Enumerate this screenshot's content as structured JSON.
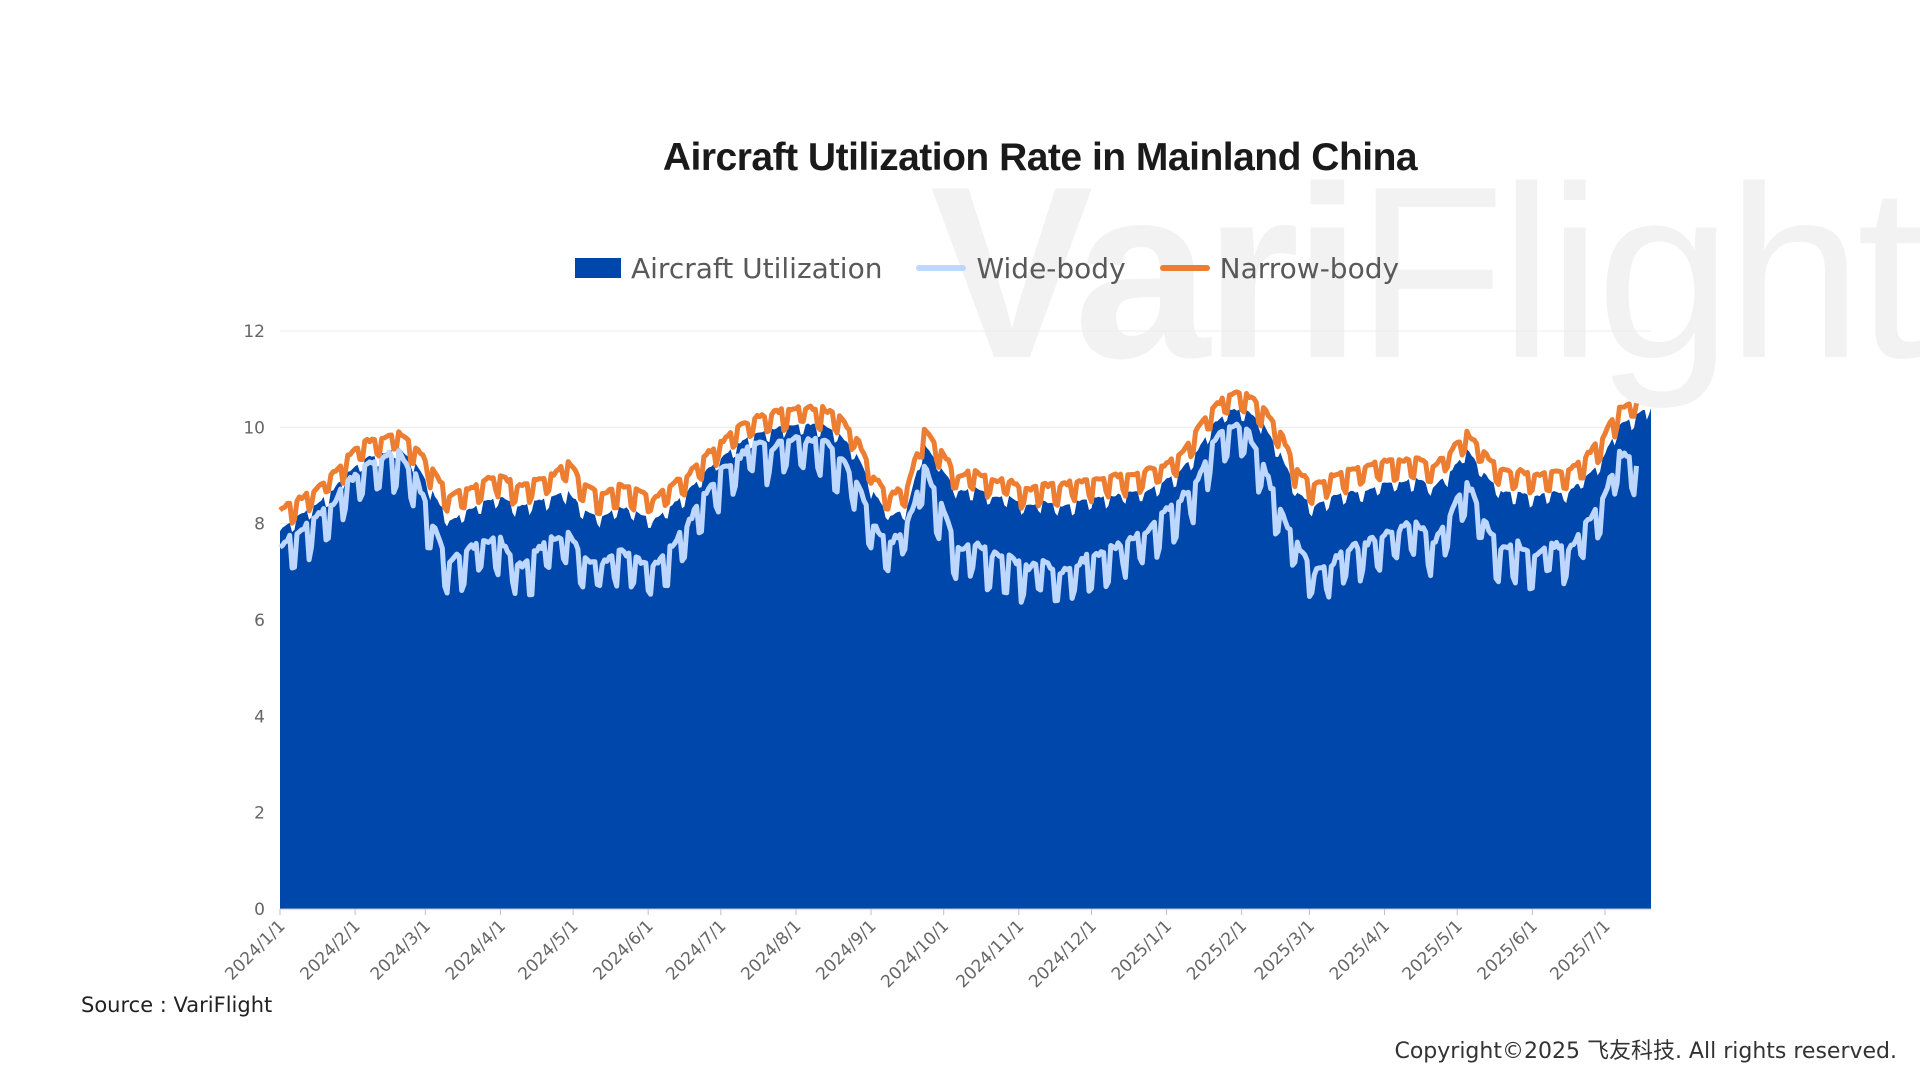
{
  "watermark": {
    "bold": "Vari",
    "light": "Flight"
  },
  "chart_data": {
    "type": "area",
    "title": "Aircraft Utilization Rate in Mainland China",
    "xlabel": "",
    "ylabel": "",
    "ylim": [
      0,
      12
    ],
    "yticks": [
      0,
      2,
      4,
      6,
      8,
      10,
      12
    ],
    "grid": "horizontal",
    "legend_position": "top",
    "x_start": "2024/1/1",
    "x_end": "2025/7/20",
    "xtick_labels": [
      "2024/1/1",
      "2024/2/1",
      "2024/3/1",
      "2024/4/1",
      "2024/5/1",
      "2024/6/1",
      "2024/7/1",
      "2024/8/1",
      "2024/9/1",
      "2024/10/1",
      "2024/11/1",
      "2024/12/1",
      "2025/1/1",
      "2025/2/1",
      "2025/3/1",
      "2025/4/1",
      "2025/5/1",
      "2025/6/1",
      "2025/7/1"
    ],
    "series": [
      {
        "name": "Aircraft Utilization",
        "style": "area",
        "color": "#0047AB",
        "x": [
          "2024/1/1",
          "2024/1/8",
          "2024/1/15",
          "2024/1/22",
          "2024/1/29",
          "2024/2/5",
          "2024/2/12",
          "2024/2/19",
          "2024/2/26",
          "2024/3/4",
          "2024/3/11",
          "2024/3/18",
          "2024/3/25",
          "2024/4/1",
          "2024/4/8",
          "2024/4/15",
          "2024/4/22",
          "2024/4/29",
          "2024/5/6",
          "2024/5/13",
          "2024/5/20",
          "2024/5/27",
          "2024/6/3",
          "2024/6/10",
          "2024/6/17",
          "2024/6/24",
          "2024/7/1",
          "2024/7/8",
          "2024/7/15",
          "2024/7/22",
          "2024/7/29",
          "2024/8/5",
          "2024/8/12",
          "2024/8/19",
          "2024/8/26",
          "2024/9/2",
          "2024/9/9",
          "2024/9/16",
          "2024/9/23",
          "2024/9/30",
          "2024/10/7",
          "2024/10/14",
          "2024/10/21",
          "2024/10/28",
          "2024/11/4",
          "2024/11/11",
          "2024/11/18",
          "2024/11/25",
          "2024/12/2",
          "2024/12/9",
          "2024/12/16",
          "2024/12/23",
          "2024/12/30",
          "2025/1/6",
          "2025/1/13",
          "2025/1/20",
          "2025/1/27",
          "2025/2/3",
          "2025/2/10",
          "2025/2/17",
          "2025/2/24",
          "2025/3/3",
          "2025/3/10",
          "2025/3/17",
          "2025/3/24",
          "2025/3/31",
          "2025/4/7",
          "2025/4/14",
          "2025/4/21",
          "2025/4/28",
          "2025/5/5",
          "2025/5/12",
          "2025/5/19",
          "2025/5/26",
          "2025/6/2",
          "2025/6/9",
          "2025/6/16",
          "2025/6/23",
          "2025/6/30",
          "2025/7/7",
          "2025/7/14",
          "2025/7/20"
        ],
        "values": [
          7.8,
          8.1,
          8.3,
          8.6,
          9.0,
          9.3,
          9.4,
          9.5,
          9.2,
          8.6,
          8.0,
          8.2,
          8.4,
          8.5,
          8.3,
          8.4,
          8.5,
          8.6,
          8.2,
          8.1,
          8.3,
          8.2,
          8.0,
          8.3,
          8.6,
          9.0,
          9.3,
          9.6,
          9.8,
          9.9,
          10.0,
          10.0,
          10.0,
          9.8,
          9.4,
          8.6,
          8.1,
          8.3,
          9.6,
          9.1,
          8.6,
          8.7,
          8.5,
          8.5,
          8.3,
          8.4,
          8.3,
          8.4,
          8.5,
          8.5,
          8.6,
          8.6,
          8.8,
          9.0,
          9.4,
          10.0,
          10.3,
          10.3,
          10.0,
          9.4,
          8.6,
          8.3,
          8.5,
          8.6,
          8.6,
          8.8,
          8.8,
          8.9,
          8.7,
          9.0,
          9.5,
          9.0,
          8.6,
          8.6,
          8.5,
          8.6,
          8.6,
          8.9,
          9.3,
          10.0,
          10.2,
          10.4
        ]
      },
      {
        "name": "Wide-body",
        "style": "line",
        "color": "#BDD7FF",
        "x": [
          "2024/1/1",
          "2024/1/8",
          "2024/1/15",
          "2024/1/22",
          "2024/1/29",
          "2024/2/5",
          "2024/2/12",
          "2024/2/19",
          "2024/2/26",
          "2024/3/4",
          "2024/3/11",
          "2024/3/18",
          "2024/3/25",
          "2024/4/1",
          "2024/4/8",
          "2024/4/15",
          "2024/4/22",
          "2024/4/29",
          "2024/5/6",
          "2024/5/13",
          "2024/5/20",
          "2024/5/27",
          "2024/6/3",
          "2024/6/10",
          "2024/6/17",
          "2024/6/24",
          "2024/7/1",
          "2024/7/8",
          "2024/7/15",
          "2024/7/22",
          "2024/7/29",
          "2024/8/5",
          "2024/8/12",
          "2024/8/19",
          "2024/8/26",
          "2024/9/2",
          "2024/9/9",
          "2024/9/16",
          "2024/9/23",
          "2024/9/30",
          "2024/10/7",
          "2024/10/14",
          "2024/10/21",
          "2024/10/28",
          "2024/11/4",
          "2024/11/11",
          "2024/11/18",
          "2024/11/25",
          "2024/12/2",
          "2024/12/9",
          "2024/12/16",
          "2024/12/23",
          "2024/12/30",
          "2025/1/6",
          "2025/1/13",
          "2025/1/20",
          "2025/1/27",
          "2025/2/3",
          "2025/2/10",
          "2025/2/17",
          "2025/2/24",
          "2025/3/3",
          "2025/3/10",
          "2025/3/17",
          "2025/3/24",
          "2025/3/31",
          "2025/4/7",
          "2025/4/14",
          "2025/4/21",
          "2025/4/28",
          "2025/5/5",
          "2025/5/12",
          "2025/5/19",
          "2025/5/26",
          "2025/6/2",
          "2025/6/9",
          "2025/6/16",
          "2025/6/23",
          "2025/6/30",
          "2025/7/7",
          "2025/7/14"
        ],
        "values": [
          7.4,
          7.6,
          7.9,
          8.2,
          8.7,
          9.0,
          9.2,
          9.3,
          8.8,
          7.8,
          7.0,
          7.3,
          7.4,
          7.5,
          6.9,
          7.2,
          7.5,
          7.6,
          7.1,
          7.0,
          7.3,
          7.1,
          6.9,
          7.3,
          7.8,
          8.4,
          8.9,
          9.2,
          9.5,
          9.4,
          9.6,
          9.5,
          9.6,
          9.2,
          8.7,
          7.8,
          7.4,
          7.8,
          9.0,
          8.2,
          7.3,
          7.4,
          7.2,
          7.1,
          6.9,
          7.0,
          6.8,
          7.0,
          7.2,
          7.3,
          7.5,
          7.6,
          8.0,
          8.3,
          8.7,
          9.5,
          9.9,
          9.8,
          9.0,
          8.1,
          7.4,
          6.8,
          7.0,
          7.3,
          7.4,
          7.6,
          7.7,
          7.9,
          7.4,
          8.0,
          8.7,
          7.9,
          7.3,
          7.4,
          7.2,
          7.4,
          7.3,
          7.8,
          8.3,
          9.3,
          9.2
        ]
      },
      {
        "name": "Narrow-body",
        "style": "line",
        "color": "#ED7D31",
        "x": [
          "2024/1/1",
          "2024/1/8",
          "2024/1/15",
          "2024/1/22",
          "2024/1/29",
          "2024/2/5",
          "2024/2/12",
          "2024/2/19",
          "2024/2/26",
          "2024/3/4",
          "2024/3/11",
          "2024/3/18",
          "2024/3/25",
          "2024/4/1",
          "2024/4/8",
          "2024/4/15",
          "2024/4/22",
          "2024/4/29",
          "2024/5/6",
          "2024/5/13",
          "2024/5/20",
          "2024/5/27",
          "2024/6/3",
          "2024/6/10",
          "2024/6/17",
          "2024/6/24",
          "2024/7/1",
          "2024/7/8",
          "2024/7/15",
          "2024/7/22",
          "2024/7/29",
          "2024/8/5",
          "2024/8/12",
          "2024/8/19",
          "2024/8/26",
          "2024/9/2",
          "2024/9/9",
          "2024/9/16",
          "2024/9/23",
          "2024/9/30",
          "2024/10/7",
          "2024/10/14",
          "2024/10/21",
          "2024/10/28",
          "2024/11/4",
          "2024/11/11",
          "2024/11/18",
          "2024/11/25",
          "2024/12/2",
          "2024/12/9",
          "2024/12/16",
          "2024/12/23",
          "2024/12/30",
          "2025/1/6",
          "2025/1/13",
          "2025/1/20",
          "2025/1/27",
          "2025/2/3",
          "2025/2/10",
          "2025/2/17",
          "2025/2/24",
          "2025/3/3",
          "2025/3/10",
          "2025/3/17",
          "2025/3/24",
          "2025/3/31",
          "2025/4/7",
          "2025/4/14",
          "2025/4/21",
          "2025/4/28",
          "2025/5/5",
          "2025/5/12",
          "2025/5/19",
          "2025/5/26",
          "2025/6/2",
          "2025/6/9",
          "2025/6/16",
          "2025/6/23",
          "2025/6/30",
          "2025/7/7",
          "2025/7/14"
        ],
        "values": [
          8.2,
          8.4,
          8.6,
          8.9,
          9.3,
          9.6,
          9.7,
          9.8,
          9.5,
          9.0,
          8.5,
          8.6,
          8.8,
          8.9,
          8.7,
          8.8,
          8.9,
          9.2,
          8.7,
          8.5,
          8.7,
          8.6,
          8.4,
          8.7,
          8.9,
          9.3,
          9.6,
          9.9,
          10.1,
          10.2,
          10.3,
          10.3,
          10.3,
          10.1,
          9.7,
          8.9,
          8.5,
          8.7,
          9.9,
          9.4,
          8.9,
          9.0,
          8.8,
          8.8,
          8.6,
          8.7,
          8.7,
          8.8,
          8.8,
          8.9,
          8.9,
          9.0,
          9.1,
          9.3,
          9.8,
          10.3,
          10.6,
          10.6,
          10.3,
          9.8,
          9.0,
          8.7,
          8.9,
          9.0,
          9.1,
          9.2,
          9.2,
          9.3,
          9.1,
          9.4,
          9.8,
          9.4,
          9.0,
          9.0,
          8.9,
          9.0,
          9.0,
          9.3,
          9.7,
          10.3,
          10.5
        ]
      }
    ]
  },
  "footer": {
    "source": "Source : VariFlight",
    "copyright": "Copyright©2025 飞友科技. All rights reserved."
  }
}
